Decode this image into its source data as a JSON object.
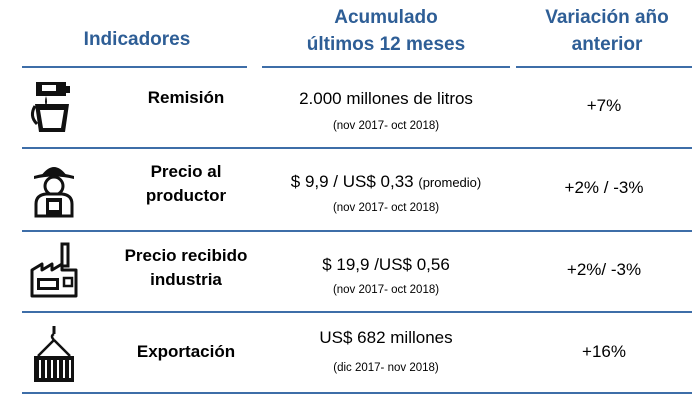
{
  "header": {
    "indicators": "Indicadores",
    "accumulated_line1": "Acumulado",
    "accumulated_line2": "últimos 12 meses",
    "variation_line1": "Variación año",
    "variation_line2": "anterior"
  },
  "rows": [
    {
      "icon": "milk-bucket-icon",
      "label_line1": "Remisión",
      "label_line2": "",
      "value": "2.000 millones de litros",
      "value_note": "",
      "period": "(nov 2017- oct 2018)",
      "variation": "+7%"
    },
    {
      "icon": "farmer-icon",
      "label_line1": "Precio al",
      "label_line2": "productor",
      "value": "$ 9,9 / US$ 0,33",
      "value_note": "(promedio)",
      "period": "(nov 2017- oct 2018)",
      "variation": "+2% / -3%"
    },
    {
      "icon": "factory-icon",
      "label_line1": "Precio recibido",
      "label_line2": "industria",
      "value": "$ 19,9 /US$ 0,56",
      "value_note": "",
      "period": "(nov 2017- oct 2018)",
      "variation": "+2%/ -3%"
    },
    {
      "icon": "shipping-container-icon",
      "label_line1": "Exportación",
      "label_line2": "",
      "value": "US$ 682 millones",
      "value_note": "",
      "period": "(dic 2017- nov 2018)",
      "variation": "+16%"
    }
  ]
}
